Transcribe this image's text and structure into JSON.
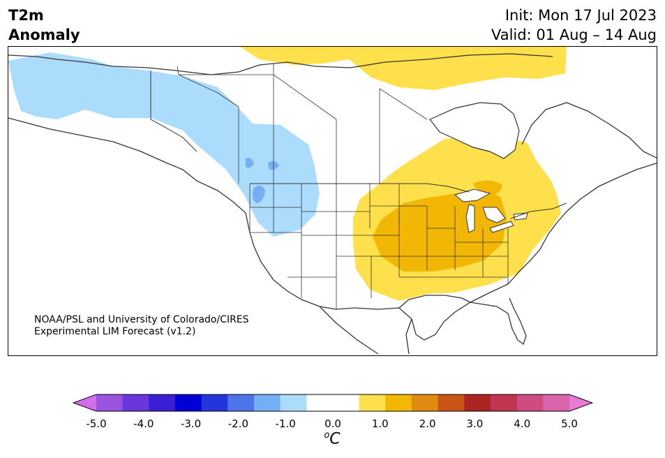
{
  "header": {
    "title_line1": "T2m",
    "title_line2": "Anomaly",
    "init": "Init: Mon 17 Jul 2023",
    "valid": "Valid: 01 Aug – 14 Aug"
  },
  "credit": {
    "line1": "NOAA/PSL and University of Colorado/CIRES",
    "line2": "Experimental LIM Forecast (v1.2)"
  },
  "colors": {
    "light_blue": "#acdcfc",
    "mid_blue": "#74aef4",
    "light_yellow": "#fee04c",
    "gold": "#f2b705",
    "border": "#333333"
  },
  "colorbar": {
    "colors": [
      "#d36de9",
      "#9a53e0",
      "#6a37dc",
      "#3b1fd4",
      "#0000d6",
      "#2236db",
      "#4f73e8",
      "#74aef4",
      "#acdcfc",
      "#ffffff",
      "#ffffff",
      "#fee04c",
      "#f2b705",
      "#e08a11",
      "#c85514",
      "#ac2421",
      "#c23550",
      "#ce4d80",
      "#da64ac",
      "#e87ad6"
    ],
    "ticks": [
      "-5.0",
      "-4.0",
      "-3.0",
      "-2.0",
      "-1.0",
      "0.0",
      "1.0",
      "2.0",
      "3.0",
      "4.0",
      "5.0"
    ],
    "unit_base": "C",
    "unit_sup": "o"
  }
}
